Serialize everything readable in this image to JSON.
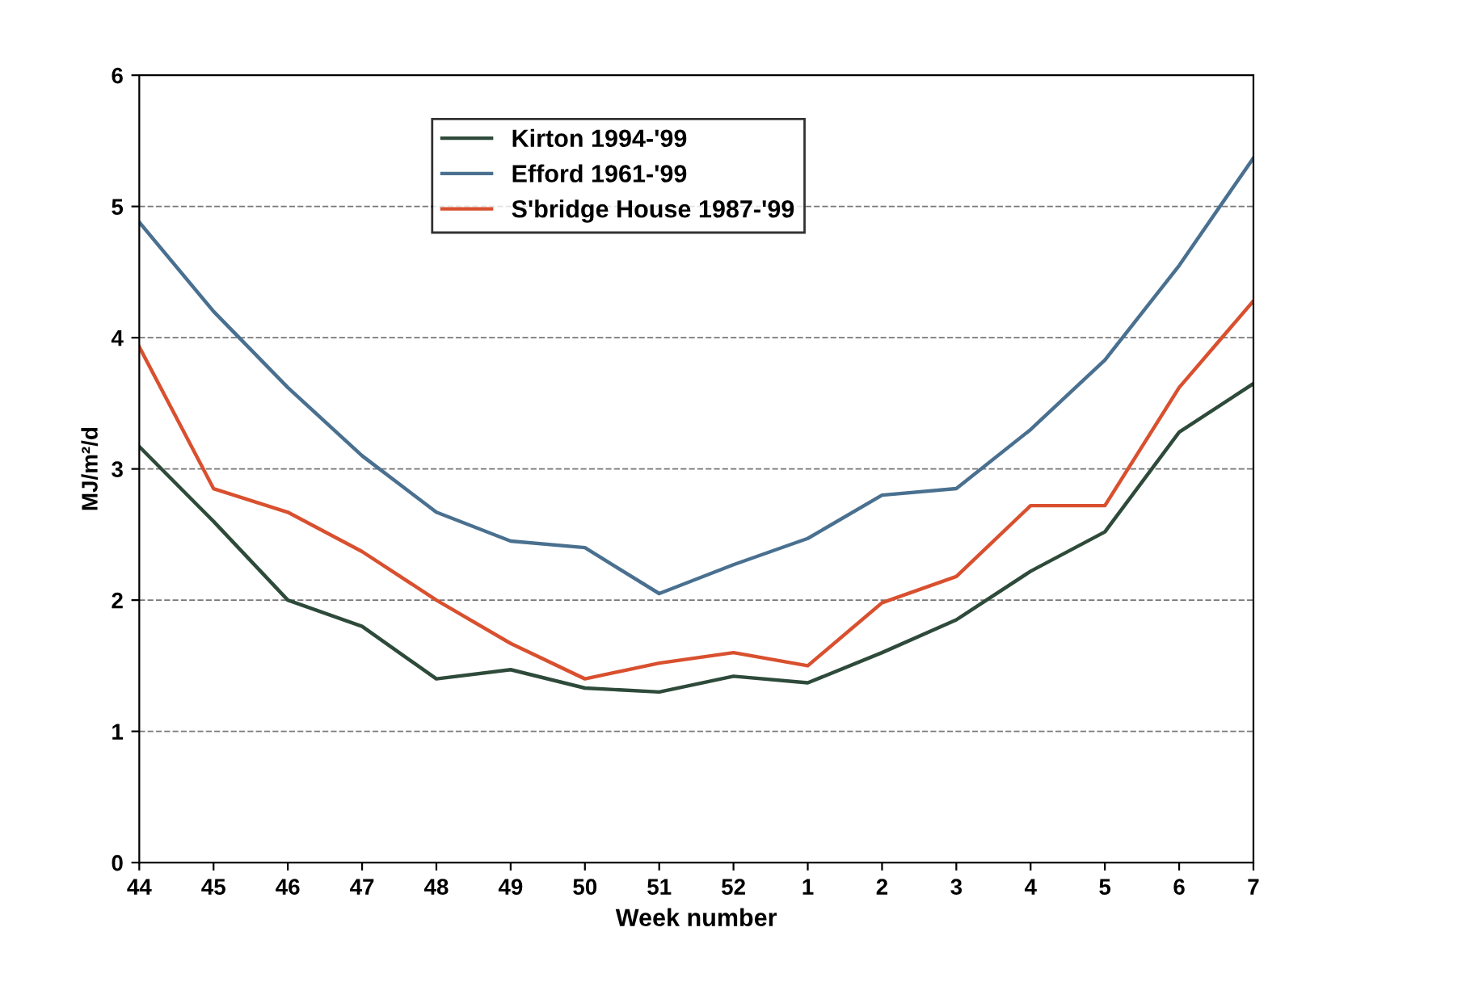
{
  "chart_data": {
    "type": "line",
    "xlabel": "Week number",
    "ylabel": "MJ/m²/d",
    "categories": [
      "44",
      "45",
      "46",
      "47",
      "48",
      "49",
      "50",
      "51",
      "52",
      "1",
      "2",
      "3",
      "4",
      "5",
      "6",
      "7"
    ],
    "series": [
      {
        "name": "Kirton 1994-'99",
        "color": "#2e4a3a",
        "values": [
          3.17,
          2.6,
          2.0,
          1.8,
          1.4,
          1.47,
          1.33,
          1.3,
          1.42,
          1.37,
          1.6,
          1.85,
          2.22,
          2.52,
          3.28,
          3.65
        ]
      },
      {
        "name": "Efford 1961-'99",
        "color": "#4a7090",
        "values": [
          4.88,
          4.2,
          3.62,
          3.1,
          2.67,
          2.45,
          2.4,
          2.05,
          2.27,
          2.47,
          2.8,
          2.85,
          3.3,
          3.83,
          4.55,
          5.37
        ]
      },
      {
        "name": "S'bridge House 1987-'99",
        "color": "#d9502f",
        "values": [
          3.93,
          2.85,
          2.67,
          2.37,
          2.0,
          1.67,
          1.4,
          1.52,
          1.6,
          1.5,
          1.98,
          2.18,
          2.72,
          2.72,
          3.62,
          4.28
        ]
      }
    ],
    "ylim": [
      0,
      6
    ],
    "yticks": [
      0,
      1,
      2,
      3,
      4,
      5,
      6
    ],
    "grid": "y",
    "legend": "top",
    "marker": "none",
    "line_style": "solid"
  }
}
